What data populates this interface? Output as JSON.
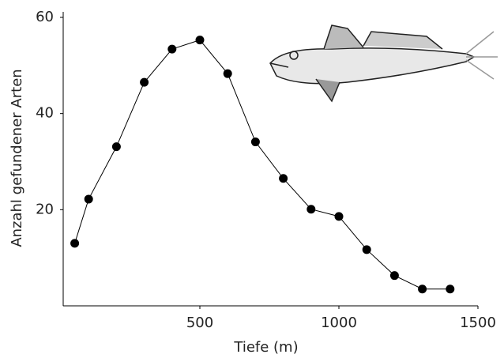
{
  "chart_data": {
    "type": "line",
    "xlabel": "Tiefe (m)",
    "ylabel": "Anzahl gefundener Arten",
    "x": [
      50,
      100,
      200,
      300,
      400,
      500,
      600,
      700,
      800,
      900,
      1000,
      1100,
      1200,
      1300,
      1400
    ],
    "series": [
      {
        "color": "#000000",
        "values": [
          13.0,
          22.2,
          33.1,
          46.5,
          53.4,
          55.3,
          48.3,
          34.1,
          26.5,
          20.1,
          18.6,
          11.7,
          6.3,
          3.5,
          3.5
        ]
      }
    ],
    "xlim": [
      0,
      1500
    ],
    "xticks": [
      500,
      1000,
      1500
    ],
    "ylim": [
      0,
      60
    ],
    "yticks": [
      20,
      40,
      60
    ]
  }
}
